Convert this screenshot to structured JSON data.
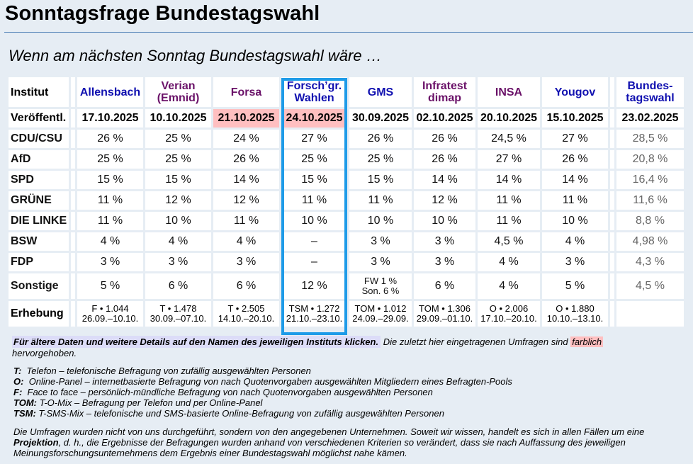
{
  "page": {
    "title": "Sonntagsfrage Bundestagswahl",
    "subtitle": "Wenn am nächsten Sonntag Bundestagswahl wäre …"
  },
  "colors": {
    "background": "#e6edf4",
    "highlight_recent": "#ffbfc0",
    "selected_column_border": "#1e9be8",
    "link_blue": "#1010b0",
    "link_purple": "#6a1168"
  },
  "table": {
    "row_labels": {
      "institut": "Institut",
      "veroeffentl": "Veröffentl.",
      "erhebung": "Erhebung"
    },
    "institutes": [
      {
        "name_line1": "Allensbach",
        "name_line2": "",
        "date": "17.10.2025",
        "recent": false,
        "method": "F • 1.044",
        "period": "26.09.–10.10."
      },
      {
        "name_line1": "Verian",
        "name_line2": "(Emnid)",
        "date": "10.10.2025",
        "recent": false,
        "method": "T • 1.478",
        "period": "30.09.–07.10."
      },
      {
        "name_line1": "Forsa",
        "name_line2": "",
        "date": "21.10.2025",
        "recent": true,
        "method": "T • 2.505",
        "period": "14.10.–20.10."
      },
      {
        "name_line1": "Forsch’gr.",
        "name_line2": "Wahlen",
        "date": "24.10.2025",
        "recent": true,
        "selected": true,
        "method": "TSM • 1.272",
        "period": "21.10.–23.10."
      },
      {
        "name_line1": "GMS",
        "name_line2": "",
        "date": "30.09.2025",
        "recent": false,
        "method": "TOM • 1.012",
        "period": "24.09.–29.09."
      },
      {
        "name_line1": "Infratest",
        "name_line2": "dimap",
        "date": "02.10.2025",
        "recent": false,
        "method": "TOM • 1.306",
        "period": "29.09.–01.10."
      },
      {
        "name_line1": "INSA",
        "name_line2": "",
        "date": "20.10.2025",
        "recent": false,
        "method": "O • 2.006",
        "period": "17.10.–20.10."
      },
      {
        "name_line1": "Yougov",
        "name_line2": "",
        "date": "15.10.2025",
        "recent": false,
        "method": "O • 1.880",
        "period": "10.10.–13.10."
      }
    ],
    "election": {
      "name_line1": "Bundes-",
      "name_line2": "tagswahl",
      "date": "23.02.2025"
    },
    "parties": [
      {
        "name": "CDU/CSU",
        "values": [
          "26 %",
          "25 %",
          "24 %",
          "27 %",
          "26 %",
          "26 %",
          "24,5 %",
          "27 %"
        ],
        "election": "28,5 %"
      },
      {
        "name": "AfD",
        "values": [
          "25 %",
          "25 %",
          "26 %",
          "25 %",
          "25 %",
          "26 %",
          "27 %",
          "26 %"
        ],
        "election": "20,8 %"
      },
      {
        "name": "SPD",
        "values": [
          "15 %",
          "15 %",
          "14 %",
          "15 %",
          "15 %",
          "14 %",
          "14 %",
          "14 %"
        ],
        "election": "16,4 %"
      },
      {
        "name": "GRÜNE",
        "values": [
          "11 %",
          "12 %",
          "12 %",
          "11 %",
          "11 %",
          "12 %",
          "11 %",
          "11 %"
        ],
        "election": "11,6 %"
      },
      {
        "name": "DIE LINKE",
        "values": [
          "11 %",
          "10 %",
          "11 %",
          "10 %",
          "10 %",
          "10 %",
          "11 %",
          "10 %"
        ],
        "election": "8,8 %"
      },
      {
        "name": "BSW",
        "values": [
          "4 %",
          "4 %",
          "4 %",
          "–",
          "3 %",
          "3 %",
          "4,5 %",
          "4 %"
        ],
        "election": "4,98 %"
      },
      {
        "name": "FDP",
        "values": [
          "3 %",
          "3 %",
          "3 %",
          "–",
          "3 %",
          "3 %",
          "4 %",
          "3 %"
        ],
        "election": "4,3 %"
      },
      {
        "name": "Sonstige",
        "values": [
          "5 %",
          "6 %",
          "6 %",
          "12 %",
          "FW 1 %|Son. 6 %",
          "6 %",
          "4 %",
          "5 %"
        ],
        "election": "4,5 %"
      }
    ]
  },
  "notes": {
    "click_hint": "Für ältere Daten und weitere Details auf den Namen des jeweiligen Instituts klicken.",
    "recent_text_before": "Die zuletzt hier eingetragenen Umfragen sind",
    "recent_highlight_word": "farblich",
    "recent_text_after": "hervorgehoben."
  },
  "legend": [
    {
      "key": "T:",
      "text": "Telefon – telefonische Befragung von zufällig ausgewählten Personen"
    },
    {
      "key": "O:",
      "text": "Online-Panel – internetbasierte Befragung von nach Quotenvorgaben ausgewählten Mitgliedern eines Befragten-Pools"
    },
    {
      "key": "F:",
      "text": "Face to face – persönlich-mündliche Befragung von nach Quotenvorgaben ausgewählten Personen"
    },
    {
      "key": "TOM:",
      "text": "T-O-Mix – Befragung per Telefon und per Online-Panel"
    },
    {
      "key": "TSM:",
      "text": "T-SMS-Mix – telefonische und SMS-basierte Online-Befragung von zufällig ausgewählten Personen"
    }
  ],
  "disclaimer": {
    "part1": "Die Umfragen wurden nicht von uns durchgeführt, sondern von den angegebenen Unternehmen. Soweit wir wissen, handelt es sich in allen Fällen um eine",
    "bold": "Projektion",
    "part2": ", d. h., die Ergebnisse der Befragungen wurden anhand von verschiedenen Kriterien so verändert, dass sie nach Auffassung des jeweiligen Meinungsforschungsunternehmens dem Ergebnis einer Bundestagswahl möglichst nahe kämen."
  }
}
